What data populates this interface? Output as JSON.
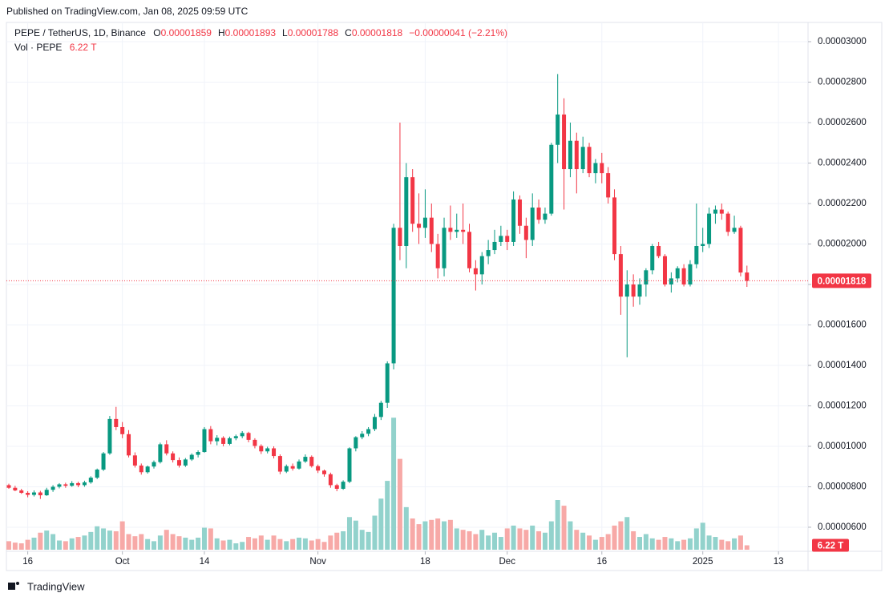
{
  "chart_data": {
    "type": "candlestick",
    "published": "Published on TradingView.com, Jan 08, 2025 09:59 UTC",
    "title": "PEPE / TetherUS, 1D, Binance",
    "ohlc_names": [
      "O",
      "H",
      "L",
      "C"
    ],
    "change": "−0.00000041 (−2.21%)",
    "volume_name": "Vol · PEPE",
    "volume_label": "6.22 T",
    "brand": "TradingView",
    "up_color": "#089981",
    "down_color": "#f23645",
    "up_volume_color": "#92d2cc",
    "down_volume_color": "#f7a9a7",
    "grid": true,
    "x": [
      "Sep 13",
      "Sep 14",
      "Sep 15",
      "Sep 16",
      "Sep 17",
      "Sep 18",
      "Sep 19",
      "Sep 20",
      "Sep 21",
      "Sep 22",
      "Sep 23",
      "Sep 24",
      "Sep 25",
      "Sep 26",
      "Sep 27",
      "Sep 28",
      "Sep 29",
      "Sep 30",
      "Oct 1",
      "Oct 2",
      "Oct 3",
      "Oct 4",
      "Oct 5",
      "Oct 6",
      "Oct 7",
      "Oct 8",
      "Oct 9",
      "Oct 10",
      "Oct 11",
      "Oct 12",
      "Oct 13",
      "Oct 14",
      "Oct 15",
      "Oct 16",
      "Oct 17",
      "Oct 18",
      "Oct 19",
      "Oct 20",
      "Oct 21",
      "Oct 22",
      "Oct 23",
      "Oct 24",
      "Oct 25",
      "Oct 26",
      "Oct 27",
      "Oct 28",
      "Oct 29",
      "Oct 30",
      "Oct 31",
      "Nov 1",
      "Nov 2",
      "Nov 3",
      "Nov 4",
      "Nov 5",
      "Nov 6",
      "Nov 7",
      "Nov 8",
      "Nov 9",
      "Nov 10",
      "Nov 11",
      "Nov 12",
      "Nov 13",
      "Nov 14",
      "Nov 15",
      "Nov 16",
      "Nov 17",
      "Nov 18",
      "Nov 19",
      "Nov 20",
      "Nov 21",
      "Nov 22",
      "Nov 23",
      "Nov 24",
      "Nov 25",
      "Nov 26",
      "Nov 27",
      "Nov 28",
      "Nov 29",
      "Nov 30",
      "Dec 1",
      "Dec 2",
      "Dec 3",
      "Dec 4",
      "Dec 5",
      "Dec 6",
      "Dec 7",
      "Dec 8",
      "Dec 9",
      "Dec 10",
      "Dec 11",
      "Dec 12",
      "Dec 13",
      "Dec 14",
      "Dec 15",
      "Dec 16",
      "Dec 17",
      "Dec 18",
      "Dec 19",
      "Dec 20",
      "Dec 21",
      "Dec 22",
      "Dec 23",
      "Dec 24",
      "Dec 25",
      "Dec 26",
      "Dec 27",
      "Dec 28",
      "Dec 29",
      "Dec 30",
      "Dec 31",
      "Jan 1",
      "Jan 2",
      "Jan 3",
      "Jan 4",
      "Jan 5",
      "Jan 6",
      "Jan 7",
      "Jan 8"
    ],
    "open": [
      8.08e-06,
      7.95e-06,
      7.82e-06,
      7.7e-06,
      7.6e-06,
      7.72e-06,
      7.58e-06,
      7.85e-06,
      8e-06,
      8.12e-06,
      8.05e-06,
      8.18e-06,
      8.08e-06,
      8.22e-06,
      8.45e-06,
      8.85e-06,
      9.65e-06,
      1.135e-05,
      1.095e-05,
      1.06e-05,
      9.55e-06,
      9.05e-06,
      8.72e-06,
      9e-06,
      9.22e-06,
      1.01e-05,
      9.65e-06,
      9.32e-06,
      9.05e-06,
      9.35e-06,
      9.58e-06,
      9.72e-06,
      1.085e-05,
      1.025e-05,
      1.042e-05,
      1.012e-05,
      1.04e-05,
      1.05e-05,
      1.066e-05,
      1.032e-05,
      1.002e-05,
      9.75e-06,
      9.9e-06,
      9.52e-06,
      8.75e-06,
      9.02e-06,
      8.9e-06,
      9.25e-06,
      9.48e-06,
      9.02e-06,
      8.8e-06,
      8.62e-06,
      8.08e-06,
      7.9e-06,
      8.25e-06,
      9.9e-06,
      1.045e-05,
      1.062e-05,
      1.085e-05,
      1.145e-05,
      1.215e-05,
      1.41e-05,
      2.08e-05,
      1.99e-05,
      2.33e-05,
      2.1e-05,
      2.08e-05,
      2.13e-05,
      2e-05,
      1.88e-05,
      2.08e-05,
      2.06e-05,
      2.07e-05,
      2.06e-05,
      1.88e-05,
      1.85e-05,
      1.94e-05,
      1.97e-05,
      2.01e-05,
      2.04e-05,
      2.01e-05,
      2.22e-05,
      2.09e-05,
      2.02e-05,
      2.18e-05,
      2.12e-05,
      2.15e-05,
      2.49e-05,
      2.64e-05,
      2.37e-05,
      2.51e-05,
      2.37e-05,
      2.48e-05,
      2.35e-05,
      2.4e-05,
      2.35e-05,
      2.23e-05,
      1.95e-05,
      1.74e-05,
      1.8e-05,
      1.74e-05,
      1.8e-05,
      1.87e-05,
      1.99e-05,
      1.94e-05,
      1.8e-05,
      1.83e-05,
      1.88e-05,
      1.8e-05,
      1.9e-05,
      1.99e-05,
      2e-05,
      2.15e-05,
      2.17e-05,
      2.15e-05,
      2.06e-05,
      2.08e-05,
      1.859e-05
    ],
    "high": [
      8.15e-06,
      8.05e-06,
      7.9e-06,
      7.78e-06,
      7.82e-06,
      7.8e-06,
      7.95e-06,
      8.08e-06,
      8.18e-06,
      8.2e-06,
      8.28e-06,
      8.25e-06,
      8.3e-06,
      8.52e-06,
      8.9e-06,
      9.72e-06,
      1.15e-05,
      1.195e-05,
      1.12e-05,
      1.08e-05,
      9.7e-06,
      9.15e-06,
      9.05e-06,
      9.3e-06,
      1.018e-05,
      1.03e-05,
      9.75e-06,
      9.45e-06,
      9.42e-06,
      9.65e-06,
      9.8e-06,
      1.095e-05,
      1.1e-05,
      1.055e-05,
      1.05e-05,
      1.048e-05,
      1.058e-05,
      1.075e-05,
      1.072e-05,
      1.04e-05,
      1.01e-05,
      9.98e-06,
      1e-05,
      9.6e-06,
      9.1e-06,
      9.15e-06,
      9.35e-06,
      9.6e-06,
      9.55e-06,
      9.1e-06,
      8.85e-06,
      8.7e-06,
      8.15e-06,
      8.32e-06,
      9.95e-06,
      1.05e-05,
      1.075e-05,
      1.095e-05,
      1.16e-05,
      1.225e-05,
      1.42e-05,
      2.1e-05,
      2.6e-05,
      2.4e-05,
      2.37e-05,
      2.25e-05,
      2.27e-05,
      2.2e-05,
      2.05e-05,
      2.13e-05,
      2.19e-05,
      2.15e-05,
      2.2e-05,
      2.1e-05,
      1.92e-05,
      1.96e-05,
      2.02e-05,
      2.07e-05,
      2.09e-05,
      2.07e-05,
      2.26e-05,
      2.24e-05,
      2.13e-05,
      2.25e-05,
      2.22e-05,
      2.18e-05,
      2.5e-05,
      2.84e-05,
      2.72e-05,
      2.6e-05,
      2.55e-05,
      2.53e-05,
      2.5e-05,
      2.42e-05,
      2.45e-05,
      2.38e-05,
      2.27e-05,
      1.99e-05,
      1.87e-05,
      1.85e-05,
      1.83e-05,
      1.88e-05,
      2e-05,
      2.01e-05,
      1.95e-05,
      1.86e-05,
      1.89e-05,
      1.9e-05,
      1.92e-05,
      2.2e-05,
      2.08e-05,
      2.18e-05,
      2.19e-05,
      2.2e-05,
      2.16e-05,
      2.14e-05,
      2.09e-05,
      1.893e-05
    ],
    "low": [
      7.9e-06,
      7.78e-06,
      7.65e-06,
      7.48e-06,
      7.52e-06,
      7.4e-06,
      7.55e-06,
      7.75e-06,
      7.92e-06,
      7.95e-06,
      8e-06,
      7.98e-06,
      8e-06,
      8.15e-06,
      8.38e-06,
      8.78e-06,
      9.58e-06,
      1.08e-05,
      1.04e-05,
      9.45e-06,
      8.95e-06,
      8.6e-06,
      8.65e-06,
      8.9e-06,
      9.15e-06,
      9.55e-06,
      9.2e-06,
      8.95e-06,
      8.98e-06,
      9.28e-06,
      9.45e-06,
      9.68e-06,
      1.01e-05,
      1.005e-05,
      1e-05,
      1.005e-05,
      1.03e-05,
      1.04e-05,
      1.02e-05,
      9.9e-06,
      9.62e-06,
      9.65e-06,
      9.4e-06,
      8.62e-06,
      8.68e-06,
      8.8e-06,
      8.85e-06,
      9.18e-06,
      8.95e-06,
      8.68e-06,
      8.5e-06,
      7.95e-06,
      7.78e-06,
      7.85e-06,
      8.18e-06,
      9.75e-06,
      1.035e-05,
      1.05e-05,
      1.075e-05,
      1.13e-05,
      1.19e-05,
      1.38e-05,
      1.92e-05,
      1.88e-05,
      2.06e-05,
      2e-05,
      2.03e-05,
      1.96e-05,
      1.83e-05,
      1.84e-05,
      2.02e-05,
      2.03e-05,
      2e-05,
      1.86e-05,
      1.77e-05,
      1.8e-05,
      1.9e-05,
      1.95e-05,
      1.99e-05,
      1.97e-05,
      1.99e-05,
      2.05e-05,
      1.93e-05,
      1.99e-05,
      2.1e-05,
      2.1e-05,
      2.14e-05,
      2.4e-05,
      2.17e-05,
      2.33e-05,
      2.25e-05,
      2.35e-05,
      2.33e-05,
      2.3e-05,
      2.3e-05,
      2.2e-05,
      1.92e-05,
      1.65e-05,
      1.44e-05,
      1.69e-05,
      1.7e-05,
      1.74e-05,
      1.85e-05,
      1.93e-05,
      1.79e-05,
      1.76e-05,
      1.81e-05,
      1.79e-05,
      1.79e-05,
      1.88e-05,
      1.96e-05,
      1.98e-05,
      2.1e-05,
      2.12e-05,
      2.04e-05,
      2.05e-05,
      1.84e-05,
      1.788e-05
    ],
    "close": [
      7.95e-06,
      7.82e-06,
      7.7e-06,
      7.6e-06,
      7.72e-06,
      7.58e-06,
      7.85e-06,
      8e-06,
      8.12e-06,
      8.05e-06,
      8.18e-06,
      8.08e-06,
      8.22e-06,
      8.45e-06,
      8.85e-06,
      9.65e-06,
      1.135e-05,
      1.095e-05,
      1.06e-05,
      9.55e-06,
      9.05e-06,
      8.72e-06,
      9e-06,
      9.22e-06,
      1.01e-05,
      9.65e-06,
      9.32e-06,
      9.05e-06,
      9.35e-06,
      9.58e-06,
      9.72e-06,
      1.085e-05,
      1.025e-05,
      1.042e-05,
      1.012e-05,
      1.04e-05,
      1.05e-05,
      1.066e-05,
      1.032e-05,
      1.002e-05,
      9.75e-06,
      9.9e-06,
      9.52e-06,
      8.75e-06,
      9.02e-06,
      8.9e-06,
      9.25e-06,
      9.48e-06,
      9.02e-06,
      8.8e-06,
      8.62e-06,
      8.08e-06,
      7.9e-06,
      8.25e-06,
      9.9e-06,
      1.045e-05,
      1.062e-05,
      1.085e-05,
      1.145e-05,
      1.215e-05,
      1.41e-05,
      2.08e-05,
      1.99e-05,
      2.33e-05,
      2.1e-05,
      2.08e-05,
      2.13e-05,
      2e-05,
      1.88e-05,
      2.08e-05,
      2.06e-05,
      2.07e-05,
      2.06e-05,
      1.88e-05,
      1.85e-05,
      1.94e-05,
      1.97e-05,
      2.01e-05,
      2.04e-05,
      2.01e-05,
      2.22e-05,
      2.09e-05,
      2.02e-05,
      2.18e-05,
      2.12e-05,
      2.15e-05,
      2.49e-05,
      2.64e-05,
      2.37e-05,
      2.51e-05,
      2.37e-05,
      2.48e-05,
      2.35e-05,
      2.4e-05,
      2.35e-05,
      2.23e-05,
      1.95e-05,
      1.74e-05,
      1.8e-05,
      1.74e-05,
      1.8e-05,
      1.87e-05,
      1.99e-05,
      1.94e-05,
      1.8e-05,
      1.83e-05,
      1.88e-05,
      1.8e-05,
      1.9e-05,
      1.99e-05,
      2e-05,
      2.15e-05,
      2.17e-05,
      2.15e-05,
      2.06e-05,
      2.08e-05,
      1.859e-05,
      1.818e-05
    ],
    "volume": [
      12,
      10,
      9,
      14,
      17,
      24,
      27,
      22,
      13,
      12,
      16,
      18,
      20,
      25,
      33,
      30,
      27,
      26,
      40,
      22,
      19,
      22,
      15,
      12,
      20,
      28,
      22,
      19,
      17,
      14,
      17,
      31,
      30,
      16,
      13,
      14,
      9,
      11,
      18,
      16,
      20,
      14,
      20,
      15,
      12,
      15,
      17,
      16,
      13,
      15,
      11,
      20,
      24,
      26,
      46,
      41,
      28,
      25,
      48,
      72,
      97,
      186,
      128,
      60,
      44,
      36,
      40,
      42,
      44,
      40,
      42,
      30,
      28,
      26,
      22,
      28,
      20,
      24,
      18,
      30,
      34,
      30,
      28,
      34,
      26,
      24,
      40,
      70,
      62,
      40,
      28,
      24,
      20,
      14,
      18,
      22,
      34,
      40,
      46,
      26,
      18,
      22,
      16,
      14,
      18,
      16,
      12,
      14,
      16,
      30,
      38,
      20,
      18,
      14,
      12,
      16,
      20,
      6.22
    ],
    "vlim": [
      0,
      210
    ],
    "ylim": [
      4.81e-06,
      3.095e-05
    ],
    "yticks": [
      {
        "value": 6e-06,
        "label": "0.00000600"
      },
      {
        "value": 8e-06,
        "label": "0.00000800"
      },
      {
        "value": 1e-05,
        "label": "0.00001000"
      },
      {
        "value": 1.2e-05,
        "label": "0.00001200"
      },
      {
        "value": 1.4e-05,
        "label": "0.00001400"
      },
      {
        "value": 1.6e-05,
        "label": "0.00001600"
      },
      {
        "value": 1.8e-05,
        "label": "0.00001800"
      },
      {
        "value": 2e-05,
        "label": "0.00002000"
      },
      {
        "value": 2.2e-05,
        "label": "0.00002200"
      },
      {
        "value": 2.4e-05,
        "label": "0.00002400"
      },
      {
        "value": 2.6e-05,
        "label": "0.00002600"
      },
      {
        "value": 2.8e-05,
        "label": "0.00002800"
      },
      {
        "value": 3e-05,
        "label": "0.00003000"
      }
    ],
    "xticks": [
      {
        "value": "Sep 16",
        "label": "16"
      },
      {
        "value": "Oct 1",
        "label": "Oct"
      },
      {
        "value": "Oct 14",
        "label": "14"
      },
      {
        "value": "Nov 1",
        "label": "Nov"
      },
      {
        "value": "Nov 18",
        "label": "18"
      },
      {
        "value": "Dec 1",
        "label": "Dec"
      },
      {
        "value": "Dec 16",
        "label": "16"
      },
      {
        "value": "Jan 1",
        "label": "2025"
      },
      {
        "value": "Jan 13",
        "label": "13"
      }
    ]
  }
}
